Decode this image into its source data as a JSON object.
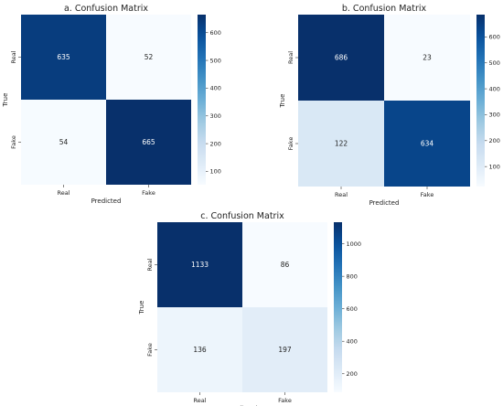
{
  "chart_data": [
    {
      "type": "heatmap",
      "title": "a. Confusion Matrix",
      "xlabel": "Predicted",
      "ylabel": "True",
      "x_categories": [
        "Real",
        "Fake"
      ],
      "y_categories": [
        "Real",
        "Fake"
      ],
      "values": [
        [
          635,
          52
        ],
        [
          54,
          665
        ]
      ],
      "colorbar": {
        "min": 52,
        "max": 665,
        "ticks": [
          "100",
          "200",
          "300",
          "400",
          "500",
          "600"
        ]
      }
    },
    {
      "type": "heatmap",
      "title": "b. Confusion Matrix",
      "xlabel": "Predicted",
      "ylabel": "True",
      "x_categories": [
        "Real",
        "Fake"
      ],
      "y_categories": [
        "Real",
        "Fake"
      ],
      "values": [
        [
          686,
          23
        ],
        [
          122,
          634
        ]
      ],
      "colorbar": {
        "min": 23,
        "max": 686,
        "ticks": [
          "100",
          "200",
          "300",
          "400",
          "500",
          "600"
        ]
      }
    },
    {
      "type": "heatmap",
      "title": "c. Confusion Matrix",
      "xlabel": "Predicted",
      "ylabel": "True",
      "x_categories": [
        "Real",
        "Fake"
      ],
      "y_categories": [
        "Real",
        "Fake"
      ],
      "values": [
        [
          1133,
          86
        ],
        [
          136,
          197
        ]
      ],
      "colorbar": {
        "min": 86,
        "max": 1133,
        "ticks": [
          "200",
          "400",
          "600",
          "800",
          "1000"
        ]
      }
    }
  ],
  "colormap": [
    "#f7fbff",
    "#deebf7",
    "#c6dbef",
    "#9ecae1",
    "#6baed6",
    "#4292c6",
    "#2171b5",
    "#08519c",
    "#08306b"
  ]
}
